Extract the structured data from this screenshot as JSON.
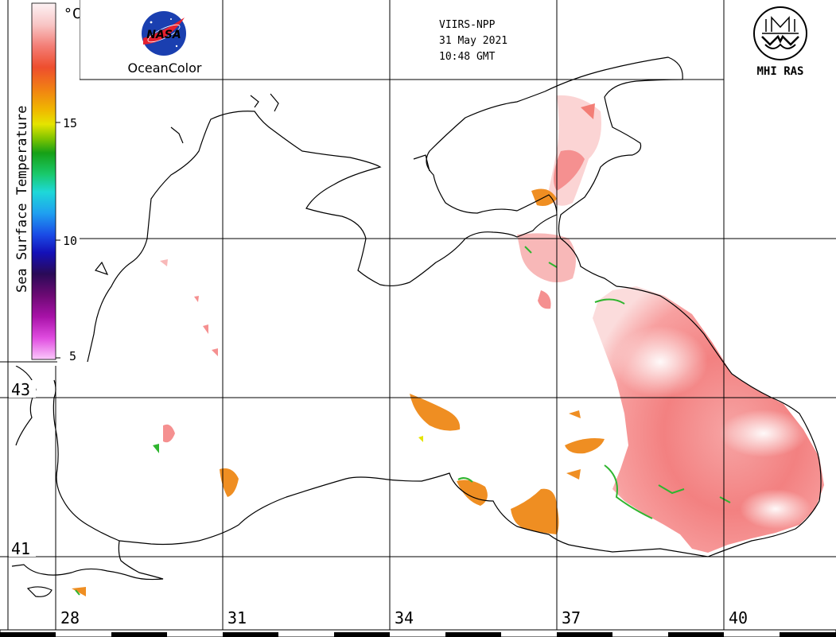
{
  "header": {
    "satellite": "VIIRS-NPP",
    "date": "31 May 2021",
    "time": "10:48 GMT"
  },
  "logos": {
    "nasa": {
      "wordmark": "NASA",
      "caption": "OceanColor",
      "icon": "nasa-meatball-icon"
    },
    "mhi": {
      "caption": "MHI RAS",
      "icon": "mhi-ras-emblem-icon"
    }
  },
  "colorbar": {
    "title": "Sea Surface Temperature",
    "unit": "°C",
    "ticks": [
      "15",
      "10",
      "5"
    ],
    "colors": [
      "#fdf2f4",
      "#f8c6c6",
      "#f37e76",
      "#ee4e2e",
      "#f17f14",
      "#f0b800",
      "#e5e400",
      "#7fc400",
      "#16a016",
      "#19c96c",
      "#1ed8d8",
      "#1f9ff0",
      "#1a4be6",
      "#1410b8",
      "#2a0a57",
      "#6c0a73",
      "#a812a8",
      "#e04ce0",
      "#fbc8fb"
    ]
  },
  "latitude_labels": [
    "43",
    "41"
  ],
  "longitude_labels": [
    "28",
    "31",
    "34",
    "37",
    "40"
  ],
  "colors": {
    "warm_sst": "#f57f7f",
    "warm_sst_light": "#fbd0d0",
    "orange_sst": "#ef8e22",
    "green_edge": "#2fb52f",
    "coastline": "#000000",
    "grid": "#000000"
  }
}
